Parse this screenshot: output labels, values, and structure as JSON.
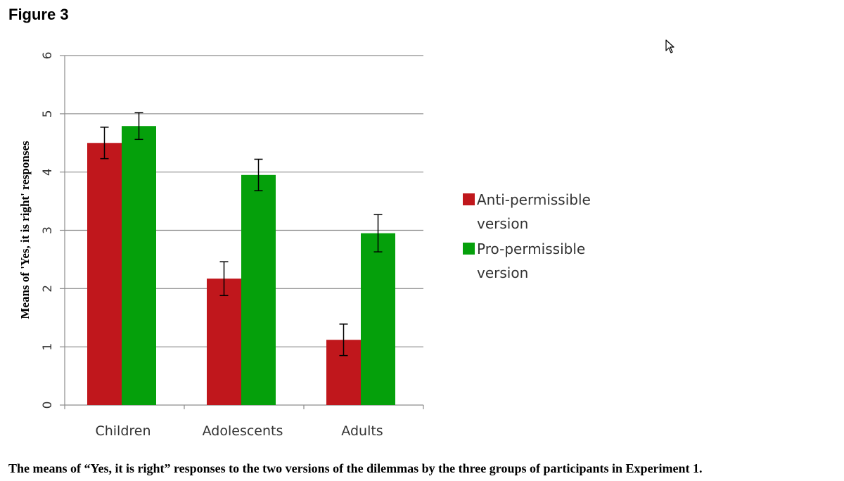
{
  "figure_label": "Figure 3",
  "caption": "The means of “Yes, it is right” responses to the two versions of the dilemmas by the three groups of participants in Experiment 1.",
  "cursor_icon": "mouse-pointer-icon",
  "chart_data": {
    "type": "bar",
    "title": "",
    "xlabel": "",
    "ylabel": "Means of 'Yes, it is right' responses",
    "ylim": [
      0,
      6
    ],
    "yticks": [
      "0",
      "1",
      "2",
      "3",
      "4",
      "5",
      "6"
    ],
    "grid": true,
    "legend_position": "right",
    "categories": [
      "Children",
      "Adolescents",
      "Adults"
    ],
    "series": [
      {
        "name": "Anti-permissible version",
        "legend_lines": [
          "Anti-permissible",
          "version"
        ],
        "color": "#c0171c",
        "values": [
          4.5,
          2.17,
          1.12
        ],
        "errors": [
          0.27,
          0.29,
          0.27
        ]
      },
      {
        "name": "Pro-permissible version",
        "legend_lines": [
          "Pro-permissible",
          "version"
        ],
        "color": "#05a00b",
        "values": [
          4.79,
          3.95,
          2.95
        ],
        "errors": [
          0.23,
          0.27,
          0.32
        ]
      }
    ]
  }
}
